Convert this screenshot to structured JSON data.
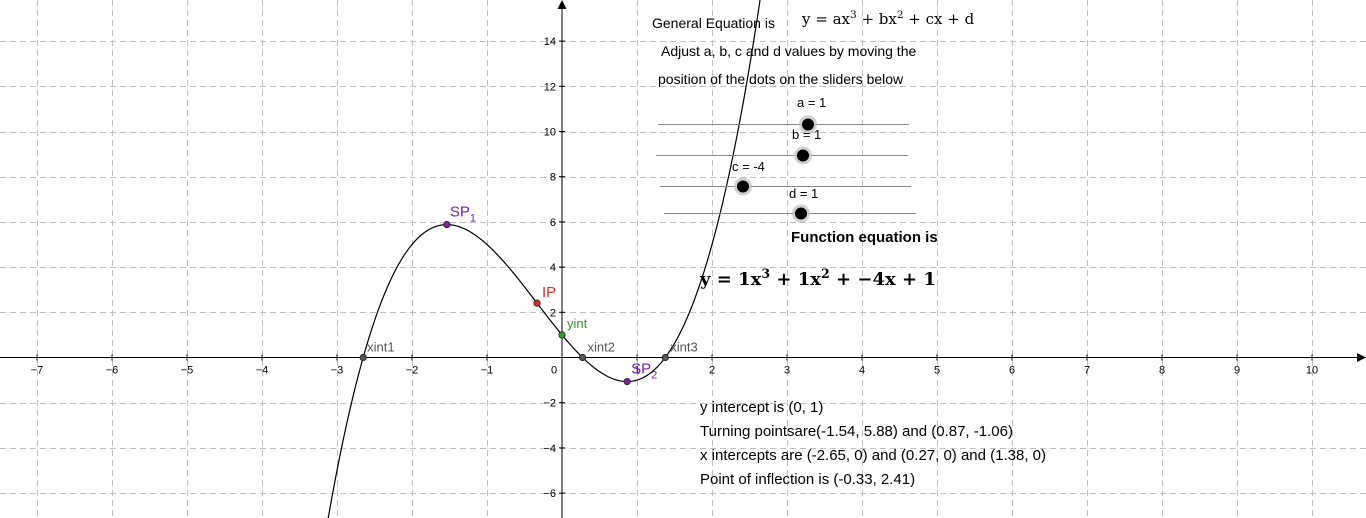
{
  "graph": {
    "x_ticks": [
      "−7",
      "−6",
      "−5",
      "−4",
      "−3",
      "−2",
      "−1",
      "0",
      "1",
      "2",
      "3",
      "4",
      "5",
      "6",
      "7",
      "8",
      "9",
      "10"
    ],
    "y_ticks": [
      "14",
      "12",
      "10",
      "8",
      "6",
      "4",
      "2",
      "−2",
      "−4",
      "−6"
    ],
    "points": {
      "sp1": {
        "main": "SP",
        "sub": "1",
        "color": "#7b1fa2"
      },
      "sp2": {
        "main": "SP",
        "sub": "2",
        "color": "#7b1fa2"
      },
      "ip": {
        "label": "IP",
        "color": "#d32f2f"
      },
      "yint": {
        "label": "yint",
        "color": "#2e9e2e"
      },
      "xint1": {
        "label": "xint1",
        "color": "#555555"
      },
      "xint2": {
        "label": "xint2",
        "color": "#555555"
      },
      "xint3": {
        "label": "xint3",
        "color": "#555555"
      }
    },
    "curve_color": "#000000",
    "axis_color": "#000000",
    "grid_color": "#c0c0c0"
  },
  "header": {
    "general_eq_label": "General Equation is",
    "general_eq": {
      "p1": "y = ax",
      "e1": "3",
      "p2": " + bx",
      "e2": "2",
      "p3": " + cx + d"
    },
    "instructions_line1": "Adjust a, b, c and d values by moving the",
    "instructions_line2": "position of the dots on the sliders below"
  },
  "sliders": [
    {
      "id": "a",
      "label": "a = 1",
      "value": 1
    },
    {
      "id": "b",
      "label": "b = 1",
      "value": 1
    },
    {
      "id": "c",
      "label": "c = -4",
      "value": -4
    },
    {
      "id": "d",
      "label": "d = 1",
      "value": 1
    }
  ],
  "function_eq": {
    "title": "Function equation is",
    "p1": "y = 1x",
    "e1": "3",
    "p2": " + 1x",
    "e2": "2",
    "p3": " + −4x + 1"
  },
  "info": {
    "y_intercept": "y intercept is (0, 1)",
    "turning_points": "Turning pointsare(-1.54, 5.88) and (0.87, -1.06)",
    "x_intercepts": "x intercepts are (-2.65, 0) and (0.27, 0) and (1.38, 0)",
    "inflection": "Point of inflection is (-0.33, 2.41)"
  }
}
